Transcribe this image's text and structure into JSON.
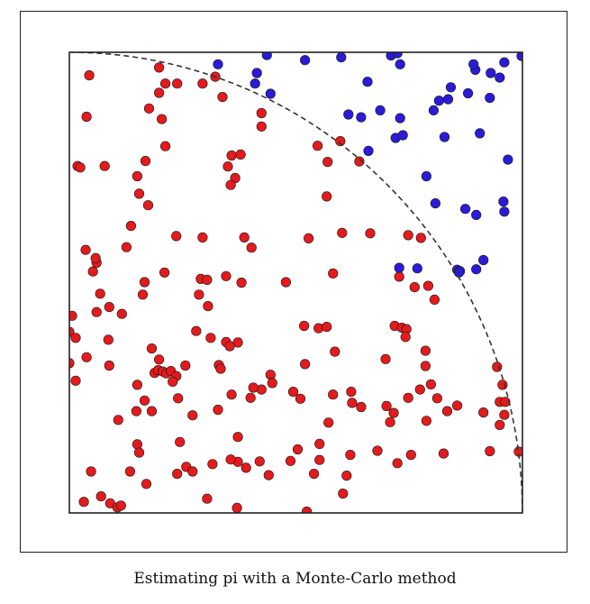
{
  "caption": "Estimating pi with a Monte-Carlo method",
  "chart_data": {
    "type": "scatter",
    "xlim": [
      0,
      1
    ],
    "ylim": [
      0,
      1
    ],
    "grid": false,
    "axis_ticks": false,
    "colors": {
      "inside": "#e41a1c",
      "outside": "#2a1bd9",
      "curve": "#333333",
      "frame": "#222222"
    },
    "curve": {
      "style": "dashed",
      "shape": "quarter-circle",
      "center": [
        0,
        0
      ],
      "radius": 1
    },
    "series": [
      {
        "class": "inside",
        "points": [
          [
            0.044,
            0.95
          ],
          [
            0.198,
            0.967
          ],
          [
            0.212,
            0.932
          ],
          [
            0.198,
            0.912
          ],
          [
            0.238,
            0.932
          ],
          [
            0.294,
            0.932
          ],
          [
            0.322,
            0.947
          ],
          [
            0.338,
            0.903
          ],
          [
            0.176,
            0.878
          ],
          [
            0.204,
            0.855
          ],
          [
            0.038,
            0.86
          ],
          [
            0.212,
            0.796
          ],
          [
            0.424,
            0.868
          ],
          [
            0.424,
            0.839
          ],
          [
            0.548,
            0.797
          ],
          [
            0.598,
            0.807
          ],
          [
            0.57,
            0.762
          ],
          [
            0.64,
            0.763
          ],
          [
            0.018,
            0.753
          ],
          [
            0.024,
            0.75
          ],
          [
            0.078,
            0.753
          ],
          [
            0.168,
            0.764
          ],
          [
            0.15,
            0.731
          ],
          [
            0.358,
            0.776
          ],
          [
            0.35,
            0.752
          ],
          [
            0.378,
            0.778
          ],
          [
            0.366,
            0.727
          ],
          [
            0.356,
            0.712
          ],
          [
            0.154,
            0.693
          ],
          [
            0.174,
            0.668
          ],
          [
            0.568,
            0.687
          ],
          [
            0.136,
            0.623
          ],
          [
            0.126,
            0.577
          ],
          [
            0.236,
            0.601
          ],
          [
            0.294,
            0.598
          ],
          [
            0.386,
            0.598
          ],
          [
            0.402,
            0.576
          ],
          [
            0.528,
            0.596
          ],
          [
            0.602,
            0.608
          ],
          [
            0.664,
            0.607
          ],
          [
            0.748,
            0.603
          ],
          [
            0.776,
            0.597
          ],
          [
            0.036,
            0.571
          ],
          [
            0.052,
            0.524
          ],
          [
            0.06,
            0.543
          ],
          [
            0.058,
            0.553
          ],
          [
            0.21,
            0.522
          ],
          [
            0.166,
            0.501
          ],
          [
            0.162,
            0.474
          ],
          [
            0.116,
            0.432
          ],
          [
            0.068,
            0.476
          ],
          [
            0.29,
            0.508
          ],
          [
            0.304,
            0.506
          ],
          [
            0.346,
            0.514
          ],
          [
            0.38,
            0.5
          ],
          [
            0.478,
            0.501
          ],
          [
            0.582,
            0.52
          ],
          [
            0.728,
            0.513
          ],
          [
            0.762,
            0.49
          ],
          [
            0.792,
            0.493
          ],
          [
            0.806,
            0.463
          ],
          [
            0.306,
            0.449
          ],
          [
            0.286,
            0.474
          ],
          [
            0.088,
            0.447
          ],
          [
            0.06,
            0.436
          ],
          [
            0.006,
            0.428
          ],
          [
            0.0,
            0.393
          ],
          [
            0.014,
            0.38
          ],
          [
            0.086,
            0.376
          ],
          [
            0.088,
            0.32
          ],
          [
            0.038,
            0.338
          ],
          [
            0.28,
            0.395
          ],
          [
            0.312,
            0.38
          ],
          [
            0.346,
            0.371
          ],
          [
            0.372,
            0.37
          ],
          [
            0.354,
            0.362
          ],
          [
            0.518,
            0.406
          ],
          [
            0.55,
            0.401
          ],
          [
            0.568,
            0.404
          ],
          [
            0.718,
            0.406
          ],
          [
            0.734,
            0.402
          ],
          [
            0.744,
            0.399
          ],
          [
            0.742,
            0.382
          ],
          [
            0.786,
            0.352
          ],
          [
            0.182,
            0.357
          ],
          [
            0.198,
            0.333
          ],
          [
            0.188,
            0.304
          ],
          [
            0.196,
            0.31
          ],
          [
            0.206,
            0.307
          ],
          [
            0.214,
            0.303
          ],
          [
            0.224,
            0.308
          ],
          [
            0.236,
            0.297
          ],
          [
            0.256,
            0.32
          ],
          [
            0.33,
            0.321
          ],
          [
            0.334,
            0.313
          ],
          [
            0.0,
            0.325
          ],
          [
            0.014,
            0.287
          ],
          [
            0.444,
            0.3
          ],
          [
            0.448,
            0.282
          ],
          [
            0.424,
            0.268
          ],
          [
            0.406,
            0.272
          ],
          [
            0.52,
            0.323
          ],
          [
            0.586,
            0.35
          ],
          [
            0.698,
            0.334
          ],
          [
            0.786,
            0.319
          ],
          [
            0.798,
            0.279
          ],
          [
            0.944,
            0.317
          ],
          [
            0.956,
            0.278
          ],
          [
            0.95,
            0.241
          ],
          [
            0.228,
            0.285
          ],
          [
            0.15,
            0.278
          ],
          [
            0.166,
            0.244
          ],
          [
            0.182,
            0.221
          ],
          [
            0.148,
            0.221
          ],
          [
            0.108,
            0.202
          ],
          [
            0.24,
            0.249
          ],
          [
            0.272,
            0.212
          ],
          [
            0.328,
            0.224
          ],
          [
            0.358,
            0.257
          ],
          [
            0.4,
            0.25
          ],
          [
            0.494,
            0.263
          ],
          [
            0.51,
            0.248
          ],
          [
            0.582,
            0.257
          ],
          [
            0.622,
            0.263
          ],
          [
            0.624,
            0.239
          ],
          [
            0.644,
            0.23
          ],
          [
            0.7,
            0.232
          ],
          [
            0.748,
            0.25
          ],
          [
            0.774,
            0.268
          ],
          [
            0.812,
            0.249
          ],
          [
            0.788,
            0.2
          ],
          [
            0.834,
            0.221
          ],
          [
            0.856,
            0.233
          ],
          [
            0.914,
            0.218
          ],
          [
            0.96,
            0.213
          ],
          [
            0.962,
            0.241
          ],
          [
            0.95,
            0.191
          ],
          [
            0.572,
            0.196
          ],
          [
            0.708,
            0.197
          ],
          [
            0.716,
            0.217
          ],
          [
            0.15,
            0.149
          ],
          [
            0.154,
            0.131
          ],
          [
            0.244,
            0.154
          ],
          [
            0.372,
            0.165
          ],
          [
            0.372,
            0.111
          ],
          [
            0.258,
            0.1
          ],
          [
            0.272,
            0.09
          ],
          [
            0.238,
            0.085
          ],
          [
            0.048,
            0.09
          ],
          [
            0.17,
            0.063
          ],
          [
            0.316,
            0.106
          ],
          [
            0.356,
            0.116
          ],
          [
            0.39,
            0.098
          ],
          [
            0.42,
            0.112
          ],
          [
            0.44,
            0.082
          ],
          [
            0.504,
            0.138
          ],
          [
            0.488,
            0.113
          ],
          [
            0.552,
            0.15
          ],
          [
            0.552,
            0.115
          ],
          [
            0.62,
            0.126
          ],
          [
            0.68,
            0.135
          ],
          [
            0.724,
            0.108
          ],
          [
            0.754,
            0.126
          ],
          [
            0.826,
            0.129
          ],
          [
            0.928,
            0.134
          ],
          [
            0.992,
            0.133
          ],
          [
            0.134,
            0.09
          ],
          [
            0.07,
            0.036
          ],
          [
            0.09,
            0.021
          ],
          [
            0.106,
            0.012
          ],
          [
            0.114,
            0.016
          ],
          [
            0.032,
            0.024
          ],
          [
            0.304,
            0.031
          ],
          [
            0.54,
            0.085
          ],
          [
            0.612,
            0.081
          ],
          [
            0.604,
            0.042
          ],
          [
            0.524,
            0.003
          ],
          [
            0.37,
            0.011
          ]
        ]
      },
      {
        "class": "outside",
        "points": [
          [
            0.328,
            0.974
          ],
          [
            0.436,
            0.994
          ],
          [
            0.52,
            0.983
          ],
          [
            0.6,
            0.989
          ],
          [
            0.71,
            0.993
          ],
          [
            0.724,
            0.998
          ],
          [
            0.896,
            0.962
          ],
          [
            0.93,
            0.955
          ],
          [
            0.96,
            0.978
          ],
          [
            0.998,
            0.992
          ],
          [
            0.41,
            0.932
          ],
          [
            0.414,
            0.955
          ],
          [
            0.444,
            0.91
          ],
          [
            0.658,
            0.936
          ],
          [
            0.73,
            0.974
          ],
          [
            0.892,
            0.974
          ],
          [
            0.95,
            0.945
          ],
          [
            0.616,
            0.865
          ],
          [
            0.644,
            0.859
          ],
          [
            0.686,
            0.874
          ],
          [
            0.73,
            0.857
          ],
          [
            0.804,
            0.874
          ],
          [
            0.816,
            0.895
          ],
          [
            0.836,
            0.898
          ],
          [
            0.842,
            0.924
          ],
          [
            0.88,
            0.911
          ],
          [
            0.928,
            0.901
          ],
          [
            0.72,
            0.814
          ],
          [
            0.736,
            0.82
          ],
          [
            0.828,
            0.816
          ],
          [
            0.906,
            0.824
          ],
          [
            0.968,
            0.767
          ],
          [
            0.808,
            0.672
          ],
          [
            0.874,
            0.66
          ],
          [
            0.898,
            0.647
          ],
          [
            0.958,
            0.676
          ],
          [
            0.96,
            0.654
          ],
          [
            0.898,
            0.529
          ],
          [
            0.914,
            0.549
          ],
          [
            0.856,
            0.528
          ],
          [
            0.862,
            0.525
          ],
          [
            0.86,
            0.522
          ],
          [
            0.768,
            0.531
          ],
          [
            0.728,
            0.532
          ],
          [
            0.788,
            0.731
          ],
          [
            0.66,
            0.786
          ]
        ]
      }
    ]
  }
}
